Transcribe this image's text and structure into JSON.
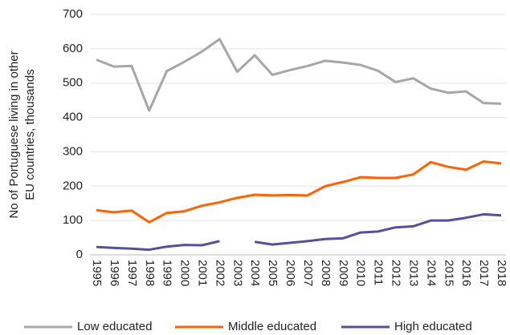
{
  "chart_data": {
    "type": "line",
    "ylabel": [
      "No of Portuguese living in other",
      "EU countries, thousands"
    ],
    "x": [
      1995,
      1996,
      1997,
      1998,
      1999,
      2000,
      2001,
      2002,
      2003,
      2004,
      2005,
      2006,
      2007,
      2008,
      2009,
      2010,
      2011,
      2012,
      2013,
      2014,
      2015,
      2016,
      2017,
      2018
    ],
    "series": [
      {
        "name": "Low educated",
        "color": "#a6a6a6",
        "values": [
          568,
          548,
          550,
          420,
          535,
          562,
          592,
          628,
          533,
          581,
          524,
          538,
          550,
          565,
          560,
          553,
          536,
          503,
          514,
          484,
          472,
          476,
          442,
          440
        ]
      },
      {
        "name": "Middle educated",
        "color": "#ff6200",
        "values": [
          130,
          124,
          129,
          95,
          122,
          127,
          143,
          153,
          166,
          175,
          173,
          174,
          173,
          200,
          212,
          226,
          224,
          224,
          234,
          270,
          256,
          248,
          272,
          266
        ]
      },
      {
        "name": "High educated",
        "color": "#525199",
        "values": [
          23,
          20,
          18,
          15,
          24,
          29,
          28,
          40,
          null,
          38,
          30,
          35,
          40,
          46,
          48,
          65,
          68,
          80,
          83,
          100,
          100,
          108,
          118,
          115
        ]
      }
    ],
    "ylim": [
      0,
      700
    ],
    "yticks": [
      0,
      100,
      200,
      300,
      400,
      500,
      600,
      700
    ],
    "grid": true,
    "legend": "bottom"
  }
}
